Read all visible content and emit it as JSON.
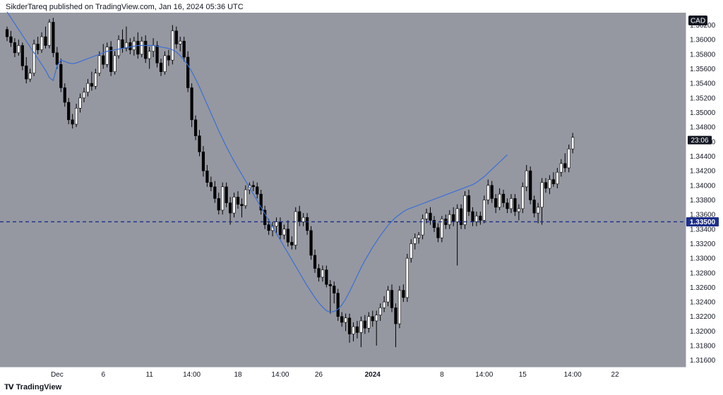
{
  "header": {
    "text": "SikderTareq published on TradingView.com, Jan 16, 2024 05:36 UTC"
  },
  "footer": {
    "logo_icon": "tradingview-logo-icon",
    "brand": "TradingView"
  },
  "colors": {
    "background": "#9598a1",
    "candle_up": "#ffffff",
    "candle_down": "#000000",
    "wick": "#000000",
    "moving_average": "#3b6fd6",
    "horizontal_line": "#1c2f8a",
    "badge_dark": "#131722",
    "badge_blue": "#1c2f8a"
  },
  "chart_data": {
    "type": "candlestick",
    "currency_label": "CAD",
    "countdown_label": "23:06",
    "horizontal_line": {
      "value": 1.335,
      "label": "1.33500",
      "style": "dashed"
    },
    "ylim": [
      1.3151,
      1.3637
    ],
    "y_ticks": [
      "1.36200",
      "1.36000",
      "1.35800",
      "1.35600",
      "1.35400",
      "1.35200",
      "1.35000",
      "1.34800",
      "1.34600",
      "1.34400",
      "1.34200",
      "1.34000",
      "1.33800",
      "1.33600",
      "1.33400",
      "1.33200",
      "1.33000",
      "1.32800",
      "1.32600",
      "1.32400",
      "1.32200",
      "1.32000",
      "1.31800",
      "1.31600"
    ],
    "x_ticks": [
      {
        "label": "Dec",
        "index": 13,
        "bold": false
      },
      {
        "label": "6",
        "index": 25,
        "bold": false
      },
      {
        "label": "11",
        "index": 37,
        "bold": false
      },
      {
        "label": "14:00",
        "index": 48,
        "bold": false
      },
      {
        "label": "18",
        "index": 60,
        "bold": false
      },
      {
        "label": "14:00",
        "index": 71,
        "bold": false
      },
      {
        "label": "26",
        "index": 81,
        "bold": false
      },
      {
        "label": "2024",
        "index": 95,
        "bold": true
      },
      {
        "label": "8",
        "index": 113,
        "bold": false
      },
      {
        "label": "14:00",
        "index": 124,
        "bold": false
      },
      {
        "label": "15",
        "index": 134,
        "bold": false
      },
      {
        "label": "14:00",
        "index": 147,
        "bold": false
      },
      {
        "label": "22",
        "index": 158,
        "bold": false
      }
    ],
    "candles": [
      [
        1.3614,
        1.3618,
        1.3598,
        1.3604
      ],
      [
        1.3604,
        1.3612,
        1.359,
        1.3596
      ],
      [
        1.3596,
        1.3602,
        1.3576,
        1.3582
      ],
      [
        1.3582,
        1.36,
        1.3578,
        1.3592
      ],
      [
        1.3592,
        1.3596,
        1.3558,
        1.3564
      ],
      [
        1.3564,
        1.3576,
        1.354,
        1.3546
      ],
      [
        1.3546,
        1.356,
        1.3542,
        1.3554
      ],
      [
        1.3554,
        1.36,
        1.355,
        1.3594
      ],
      [
        1.3594,
        1.3604,
        1.358,
        1.3586
      ],
      [
        1.3586,
        1.361,
        1.3582,
        1.3604
      ],
      [
        1.3604,
        1.3618,
        1.3588,
        1.3592
      ],
      [
        1.3592,
        1.3628,
        1.3588,
        1.3624
      ],
      [
        1.3624,
        1.363,
        1.3576,
        1.3582
      ],
      [
        1.3582,
        1.359,
        1.356,
        1.3566
      ],
      [
        1.3566,
        1.3574,
        1.3528,
        1.3534
      ],
      [
        1.3534,
        1.354,
        1.3508,
        1.3514
      ],
      [
        1.3514,
        1.352,
        1.3484,
        1.349
      ],
      [
        1.349,
        1.3498,
        1.3478,
        1.3484
      ],
      [
        1.3484,
        1.3512,
        1.348,
        1.3506
      ],
      [
        1.3506,
        1.3526,
        1.35,
        1.352
      ],
      [
        1.352,
        1.3534,
        1.3514,
        1.3528
      ],
      [
        1.3528,
        1.3546,
        1.3522,
        1.354
      ],
      [
        1.354,
        1.3556,
        1.353,
        1.3536
      ],
      [
        1.3536,
        1.356,
        1.3532,
        1.3554
      ],
      [
        1.3554,
        1.3584,
        1.355,
        1.3578
      ],
      [
        1.3578,
        1.3594,
        1.356,
        1.3566
      ],
      [
        1.3566,
        1.3596,
        1.3562,
        1.359
      ],
      [
        1.359,
        1.3598,
        1.355,
        1.3556
      ],
      [
        1.3556,
        1.3584,
        1.3552,
        1.3578
      ],
      [
        1.3578,
        1.3606,
        1.3574,
        1.36
      ],
      [
        1.36,
        1.3614,
        1.3582,
        1.3588
      ],
      [
        1.3588,
        1.3618,
        1.3584,
        1.3596
      ],
      [
        1.3596,
        1.3602,
        1.358,
        1.3586
      ],
      [
        1.3586,
        1.3604,
        1.3578,
        1.3598
      ],
      [
        1.3598,
        1.361,
        1.3574,
        1.358
      ],
      [
        1.358,
        1.3604,
        1.3576,
        1.3598
      ],
      [
        1.3598,
        1.3606,
        1.3568,
        1.3574
      ],
      [
        1.3574,
        1.359,
        1.356,
        1.3584
      ],
      [
        1.3584,
        1.3602,
        1.3576,
        1.3592
      ],
      [
        1.3592,
        1.3598,
        1.3562,
        1.3568
      ],
      [
        1.3568,
        1.3574,
        1.355,
        1.3556
      ],
      [
        1.3556,
        1.3584,
        1.3552,
        1.3578
      ],
      [
        1.3578,
        1.3586,
        1.3564,
        1.3572
      ],
      [
        1.3572,
        1.362,
        1.3566,
        1.3612
      ],
      [
        1.3612,
        1.3618,
        1.3588,
        1.3594
      ],
      [
        1.3594,
        1.3604,
        1.3584,
        1.3598
      ],
      [
        1.3598,
        1.3604,
        1.357,
        1.3576
      ],
      [
        1.3576,
        1.3584,
        1.3528,
        1.3534
      ],
      [
        1.3534,
        1.354,
        1.348,
        1.349
      ],
      [
        1.349,
        1.3496,
        1.3462,
        1.3468
      ],
      [
        1.3468,
        1.3476,
        1.344,
        1.3446
      ],
      [
        1.3446,
        1.3454,
        1.3412,
        1.342
      ],
      [
        1.342,
        1.3428,
        1.3398,
        1.3404
      ],
      [
        1.3404,
        1.3412,
        1.3392,
        1.3398
      ],
      [
        1.3398,
        1.3406,
        1.3376,
        1.3382
      ],
      [
        1.3382,
        1.339,
        1.336,
        1.3366
      ],
      [
        1.3366,
        1.3404,
        1.336,
        1.3398
      ],
      [
        1.3398,
        1.3404,
        1.337,
        1.3376
      ],
      [
        1.3376,
        1.3384,
        1.3346,
        1.3362
      ],
      [
        1.3362,
        1.339,
        1.3356,
        1.3384
      ],
      [
        1.3384,
        1.3392,
        1.3368,
        1.3374
      ],
      [
        1.3374,
        1.3382,
        1.3356,
        1.3372
      ],
      [
        1.3372,
        1.34,
        1.3368,
        1.3394
      ],
      [
        1.3394,
        1.3404,
        1.3388,
        1.34
      ],
      [
        1.34,
        1.3406,
        1.3392,
        1.3398
      ],
      [
        1.3398,
        1.3404,
        1.3382,
        1.3388
      ],
      [
        1.3388,
        1.3394,
        1.336,
        1.3366
      ],
      [
        1.3366,
        1.3372,
        1.334,
        1.3346
      ],
      [
        1.3346,
        1.3354,
        1.3332,
        1.3338
      ],
      [
        1.3338,
        1.335,
        1.333,
        1.3344
      ],
      [
        1.3344,
        1.3356,
        1.3334,
        1.335
      ],
      [
        1.335,
        1.3356,
        1.3326,
        1.3332
      ],
      [
        1.3332,
        1.3346,
        1.3326,
        1.334
      ],
      [
        1.334,
        1.3352,
        1.3316,
        1.3322
      ],
      [
        1.3322,
        1.333,
        1.3312,
        1.3318
      ],
      [
        1.3318,
        1.337,
        1.3312,
        1.3364
      ],
      [
        1.3364,
        1.3372,
        1.3344,
        1.335
      ],
      [
        1.335,
        1.3362,
        1.3344,
        1.3356
      ],
      [
        1.3356,
        1.3362,
        1.3332,
        1.3338
      ],
      [
        1.3338,
        1.3344,
        1.3298,
        1.3304
      ],
      [
        1.3304,
        1.3312,
        1.328,
        1.3286
      ],
      [
        1.3286,
        1.3292,
        1.3268,
        1.3274
      ],
      [
        1.3274,
        1.329,
        1.3268,
        1.3284
      ],
      [
        1.3284,
        1.329,
        1.326,
        1.3264
      ],
      [
        1.3264,
        1.327,
        1.3224,
        1.3262
      ],
      [
        1.3262,
        1.3268,
        1.3238,
        1.3252
      ],
      [
        1.3252,
        1.3258,
        1.3214,
        1.322
      ],
      [
        1.322,
        1.3226,
        1.3206,
        1.3212
      ],
      [
        1.3212,
        1.3224,
        1.32,
        1.3218
      ],
      [
        1.3218,
        1.3224,
        1.3184,
        1.3196
      ],
      [
        1.3196,
        1.3212,
        1.3186,
        1.3206
      ],
      [
        1.3206,
        1.3214,
        1.319,
        1.3198
      ],
      [
        1.3198,
        1.322,
        1.3178,
        1.3214
      ],
      [
        1.3214,
        1.3222,
        1.3196,
        1.3204
      ],
      [
        1.3204,
        1.3226,
        1.3198,
        1.322
      ],
      [
        1.322,
        1.3228,
        1.3206,
        1.3214
      ],
      [
        1.3214,
        1.3228,
        1.318,
        1.3222
      ],
      [
        1.3222,
        1.3238,
        1.3214,
        1.3232
      ],
      [
        1.3232,
        1.3248,
        1.3226,
        1.324
      ],
      [
        1.324,
        1.3262,
        1.3234,
        1.3256
      ],
      [
        1.3256,
        1.3264,
        1.3226,
        1.3232
      ],
      [
        1.3232,
        1.3238,
        1.3178,
        1.321
      ],
      [
        1.321,
        1.3262,
        1.3204,
        1.3256
      ],
      [
        1.3256,
        1.3264,
        1.324,
        1.3246
      ],
      [
        1.3246,
        1.3306,
        1.324,
        1.33
      ],
      [
        1.33,
        1.3326,
        1.3294,
        1.332
      ],
      [
        1.332,
        1.3334,
        1.3312,
        1.3328
      ],
      [
        1.3328,
        1.3336,
        1.332,
        1.3332
      ],
      [
        1.3332,
        1.336,
        1.3326,
        1.3354
      ],
      [
        1.3354,
        1.3368,
        1.3348,
        1.3362
      ],
      [
        1.3362,
        1.337,
        1.3346,
        1.3352
      ],
      [
        1.3352,
        1.3358,
        1.3336,
        1.3342
      ],
      [
        1.3342,
        1.3348,
        1.3322,
        1.3328
      ],
      [
        1.3328,
        1.3358,
        1.3322,
        1.3354
      ],
      [
        1.3354,
        1.336,
        1.334,
        1.3346
      ],
      [
        1.3346,
        1.3366,
        1.334,
        1.336
      ],
      [
        1.336,
        1.337,
        1.3344,
        1.335
      ],
      [
        1.335,
        1.3374,
        1.329,
        1.3368
      ],
      [
        1.3368,
        1.3374,
        1.334,
        1.3346
      ],
      [
        1.3346,
        1.3392,
        1.334,
        1.3386
      ],
      [
        1.3386,
        1.3394,
        1.3358,
        1.3364
      ],
      [
        1.3364,
        1.337,
        1.3344,
        1.335
      ],
      [
        1.335,
        1.3364,
        1.3344,
        1.3358
      ],
      [
        1.3358,
        1.3364,
        1.3346,
        1.3352
      ],
      [
        1.3352,
        1.3386,
        1.3348,
        1.338
      ],
      [
        1.338,
        1.3408,
        1.3374,
        1.34
      ],
      [
        1.34,
        1.3406,
        1.3376,
        1.3382
      ],
      [
        1.3382,
        1.3388,
        1.3362,
        1.337
      ],
      [
        1.337,
        1.3396,
        1.3366,
        1.3388
      ],
      [
        1.3388,
        1.3394,
        1.337,
        1.3376
      ],
      [
        1.3376,
        1.3382,
        1.3362,
        1.3368
      ],
      [
        1.3368,
        1.3388,
        1.3362,
        1.3382
      ],
      [
        1.3382,
        1.3388,
        1.3358,
        1.3364
      ],
      [
        1.3364,
        1.3374,
        1.3352,
        1.3368
      ],
      [
        1.3368,
        1.3404,
        1.3362,
        1.3398
      ],
      [
        1.3398,
        1.3428,
        1.3392,
        1.342
      ],
      [
        1.342,
        1.3426,
        1.3374,
        1.338
      ],
      [
        1.338,
        1.3386,
        1.3356,
        1.3362
      ],
      [
        1.3362,
        1.3376,
        1.3348,
        1.337
      ],
      [
        1.337,
        1.341,
        1.3346,
        1.3404
      ],
      [
        1.3404,
        1.341,
        1.339,
        1.3396
      ],
      [
        1.3396,
        1.3414,
        1.3388,
        1.3408
      ],
      [
        1.3408,
        1.3418,
        1.3398,
        1.3402
      ],
      [
        1.3402,
        1.3424,
        1.3396,
        1.3418
      ],
      [
        1.3418,
        1.3436,
        1.3412,
        1.343
      ],
      [
        1.343,
        1.3444,
        1.3418,
        1.3424
      ],
      [
        1.3424,
        1.3456,
        1.3418,
        1.345
      ],
      [
        1.345,
        1.3472,
        1.3444,
        1.3466
      ]
    ],
    "moving_average": [
      1.3638,
      1.363,
      1.3622,
      1.3614,
      1.3606,
      1.3598,
      1.359,
      1.3582,
      1.3574,
      1.3566,
      1.3558,
      1.3548,
      1.3544,
      1.3564,
      1.3572,
      1.357,
      1.3568,
      1.3567,
      1.3568,
      1.357,
      1.3572,
      1.3574,
      1.3576,
      1.3578,
      1.358,
      1.3582,
      1.3584,
      1.3585,
      1.3586,
      1.3587,
      1.3588,
      1.3589,
      1.359,
      1.3591,
      1.3592,
      1.3592,
      1.3592,
      1.3592,
      1.3592,
      1.3591,
      1.359,
      1.3589,
      1.3588,
      1.3586,
      1.3583,
      1.3578,
      1.3572,
      1.3565,
      1.3556,
      1.3546,
      1.3535,
      1.3523,
      1.3511,
      1.3499,
      1.3487,
      1.3475,
      1.3464,
      1.3453,
      1.3443,
      1.3433,
      1.3424,
      1.3415,
      1.3406,
      1.3397,
      1.3388,
      1.3379,
      1.337,
      1.3361,
      1.3352,
      1.3343,
      1.3334,
      1.3325,
      1.3316,
      1.3307,
      1.3298,
      1.3289,
      1.328,
      1.3271,
      1.3262,
      1.3254,
      1.3246,
      1.3239,
      1.3233,
      1.3228,
      1.3226,
      1.3227,
      1.323,
      1.3236,
      1.3244,
      1.3254,
      1.3265,
      1.3276,
      1.3287,
      1.3297,
      1.3306,
      1.3315,
      1.3323,
      1.3331,
      1.3338,
      1.3345,
      1.3351,
      1.3356,
      1.336,
      1.3364,
      1.3367,
      1.3369,
      1.3371,
      1.3373,
      1.3375,
      1.3377,
      1.3379,
      1.3381,
      1.3383,
      1.3385,
      1.3387,
      1.3389,
      1.3391,
      1.3393,
      1.3395,
      1.3397,
      1.3399,
      1.3401,
      1.3404,
      1.3408,
      1.3412,
      1.3417,
      1.3422,
      1.3427,
      1.3432,
      1.3437,
      1.3442
    ]
  }
}
